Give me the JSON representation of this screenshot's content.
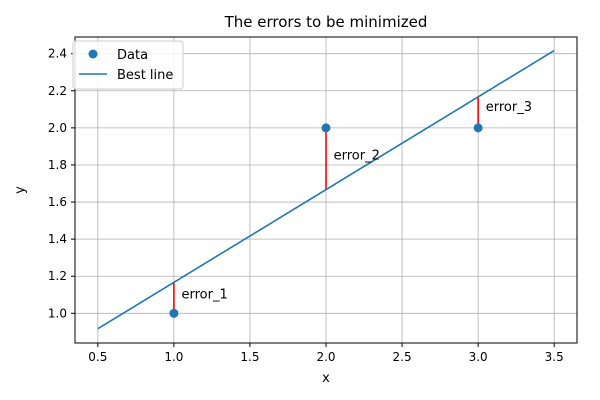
{
  "chart_data": {
    "type": "scatter",
    "title": "The errors to be minimized",
    "xlabel": "x",
    "ylabel": "y",
    "xlim": [
      0.35,
      3.65
    ],
    "ylim": [
      0.84,
      2.49
    ],
    "xticks": [
      0.5,
      1.0,
      1.5,
      2.0,
      2.5,
      3.0,
      3.5
    ],
    "xtick_labels": [
      "0.5",
      "1.0",
      "1.5",
      "2.0",
      "2.5",
      "3.0",
      "3.5"
    ],
    "yticks": [
      1.0,
      1.2,
      1.4,
      1.6,
      1.8,
      2.0,
      2.2,
      2.4
    ],
    "ytick_labels": [
      "1.0",
      "1.2",
      "1.4",
      "1.6",
      "1.8",
      "2.0",
      "2.2",
      "2.4"
    ],
    "grid": true,
    "legend_position": "top-left",
    "series": [
      {
        "name": "Data",
        "kind": "scatter",
        "color": "#1f77b4",
        "points": [
          {
            "x": 1.0,
            "y": 1.0
          },
          {
            "x": 2.0,
            "y": 2.0
          },
          {
            "x": 3.0,
            "y": 2.0
          }
        ]
      },
      {
        "name": "Best line",
        "kind": "line",
        "color": "#1f77b4",
        "points": [
          {
            "x": 0.5,
            "y": 0.917
          },
          {
            "x": 3.5,
            "y": 2.417
          }
        ]
      }
    ],
    "errors": [
      {
        "label": "error_1",
        "x": 1.0,
        "y_data": 1.0,
        "y_line": 1.167,
        "label_x": 1.05,
        "label_y": 1.08
      },
      {
        "label": "error_2",
        "x": 2.0,
        "y_data": 2.0,
        "y_line": 1.667,
        "label_x": 2.05,
        "label_y": 1.83
      },
      {
        "label": "error_3",
        "x": 3.0,
        "y_data": 2.0,
        "y_line": 2.167,
        "label_x": 3.05,
        "label_y": 2.09
      }
    ],
    "error_color": "#ff0000",
    "grid_color": "#b0b0b0"
  }
}
